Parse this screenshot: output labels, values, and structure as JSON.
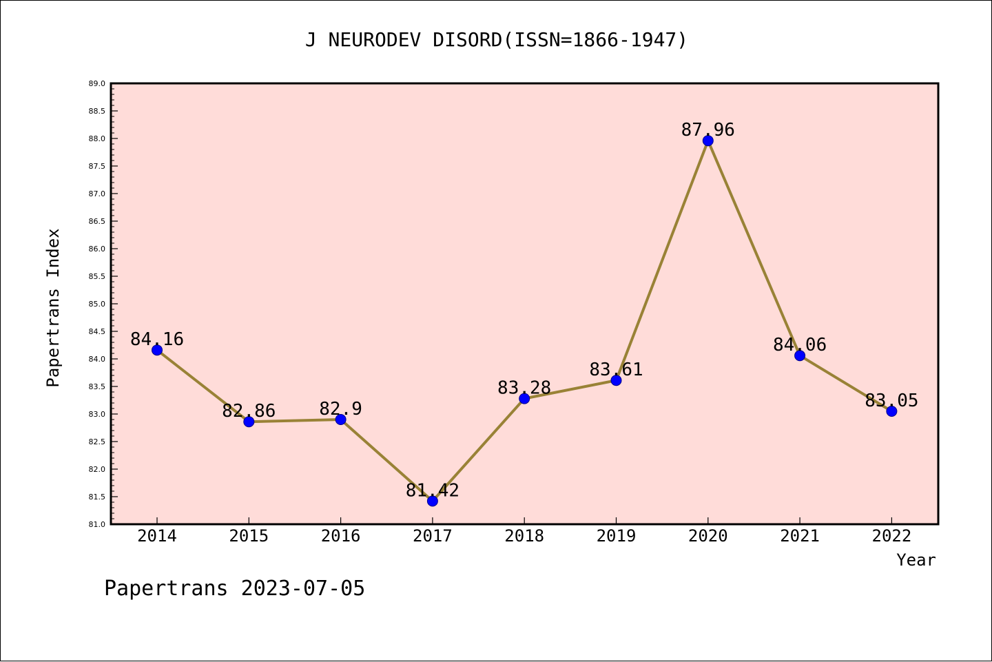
{
  "chart_data": {
    "type": "line",
    "title": "J NEURODEV DISORD(ISSN=1866-1947)",
    "xlabel": "Year",
    "ylabel": "Papertrans Index",
    "footer": "Papertrans 2023-07-05",
    "categories": [
      "2014",
      "2015",
      "2016",
      "2017",
      "2018",
      "2019",
      "2020",
      "2021",
      "2022"
    ],
    "series": [
      {
        "values": [
          84.16,
          82.86,
          82.9,
          81.42,
          83.28,
          83.61,
          87.96,
          84.06,
          83.05
        ],
        "labels": [
          "84.16",
          "82.86",
          "82.9",
          "81.42",
          "83.28",
          "83.61",
          "87.96",
          "84.06",
          "83.05"
        ]
      }
    ],
    "ylim": [
      81.0,
      89.0
    ],
    "y_ticks": [
      "81.0",
      "81.5",
      "82.0",
      "82.5",
      "83.0",
      "83.5",
      "84.0",
      "84.5",
      "85.0",
      "85.5",
      "86.0",
      "86.5",
      "87.0",
      "87.5",
      "88.0",
      "88.5",
      "89.0"
    ],
    "grid": false,
    "legend": "none",
    "colors": {
      "plot_background": "#ffdcd9",
      "line": "#998236",
      "marker": "#0000ff",
      "axis": "#000000",
      "text": "#000000"
    }
  }
}
